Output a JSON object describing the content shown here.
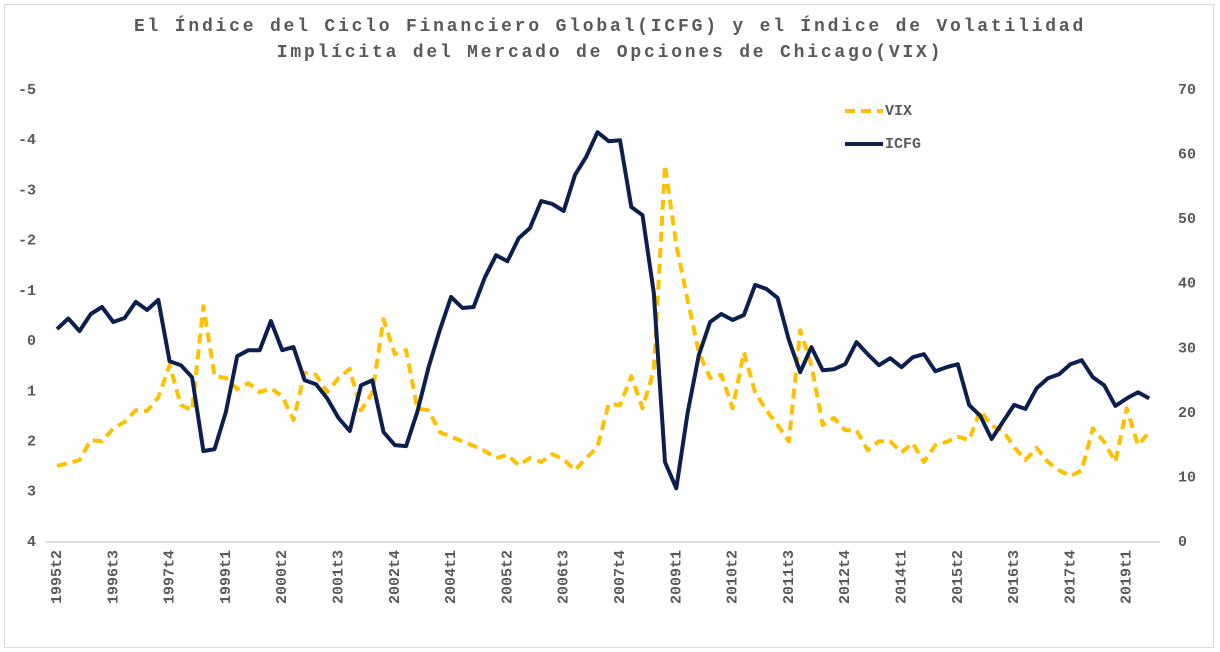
{
  "chart_data": {
    "type": "line",
    "title": "El Índice del Ciclo Financiero Global(ICFG) y el Índice de Volatilidad Implícita del Mercado de Opciones de Chicago(VIX)",
    "categories": [
      "1995t2",
      null,
      null,
      null,
      null,
      "1996t3",
      null,
      null,
      null,
      null,
      "1997t4",
      null,
      null,
      null,
      null,
      "1999t1",
      null,
      null,
      null,
      null,
      "2000t2",
      null,
      null,
      null,
      null,
      "2001t3",
      null,
      null,
      null,
      null,
      "2002t4",
      null,
      null,
      null,
      null,
      "2004t1",
      null,
      null,
      null,
      null,
      "2005t2",
      null,
      null,
      null,
      null,
      "2006t3",
      null,
      null,
      null,
      null,
      "2007t4",
      null,
      null,
      null,
      null,
      "2009t1",
      null,
      null,
      null,
      null,
      "2010t2",
      null,
      null,
      null,
      null,
      "2011t3",
      null,
      null,
      null,
      null,
      "2012t4",
      null,
      null,
      null,
      null,
      "2014t1",
      null,
      null,
      null,
      null,
      "2015t2",
      null,
      null,
      null,
      null,
      "2016t3",
      null,
      null,
      null,
      null,
      "2017t4",
      null,
      null,
      null,
      null,
      "2019t1",
      null,
      null
    ],
    "series": [
      {
        "name": "VIX",
        "color": "#ffc000",
        "dashed": true,
        "axis": "y2",
        "values": [
          11.8,
          12.2,
          12.7,
          15.8,
          15.6,
          17.6,
          18.6,
          20.4,
          20.3,
          22.4,
          27.4,
          21.2,
          20.4,
          36.5,
          25.7,
          25.4,
          23.7,
          24.6,
          23.2,
          23.8,
          22.6,
          18.9,
          26.2,
          25.9,
          23.2,
          25.4,
          26.8,
          20.4,
          23.1,
          34.5,
          29.1,
          29.7,
          20.7,
          20.4,
          17.0,
          16.3,
          15.6,
          14.9,
          14.1,
          13.0,
          13.5,
          11.9,
          13.0,
          12.4,
          13.6,
          12.8,
          11.1,
          13.0,
          14.7,
          21.4,
          21.2,
          25.7,
          20.7,
          26.6,
          58.4,
          46.0,
          37.5,
          29.4,
          25.4,
          25.9,
          20.7,
          29.4,
          23.2,
          20.4,
          18.1,
          15.6,
          32.8,
          27.4,
          18.1,
          19.2,
          17.3,
          17.3,
          14.2,
          15.6,
          15.6,
          13.9,
          15.3,
          12.4,
          15.0,
          15.5,
          16.3,
          15.8,
          20.4,
          18.0,
          17.3,
          14.7,
          12.7,
          14.6,
          12.4,
          11.1,
          10.2,
          11.1,
          17.6,
          15.5,
          12.4,
          20.7,
          15.0,
          17.0
        ]
      },
      {
        "name": "ICFG",
        "color": "#0c1f4f",
        "dashed": false,
        "axis": "y",
        "values": [
          -0.24,
          -0.45,
          -0.2,
          -0.54,
          -0.68,
          -0.38,
          -0.46,
          -0.78,
          -0.62,
          -0.82,
          0.4,
          0.48,
          0.72,
          2.19,
          2.15,
          1.41,
          0.3,
          0.18,
          0.18,
          -0.4,
          0.18,
          0.12,
          0.78,
          0.86,
          1.14,
          1.53,
          1.79,
          0.88,
          0.78,
          1.81,
          2.07,
          2.09,
          1.41,
          0.52,
          -0.22,
          -0.88,
          -0.66,
          -0.68,
          -1.27,
          -1.71,
          -1.59,
          -2.05,
          -2.25,
          -2.79,
          -2.73,
          -2.59,
          -3.31,
          -3.67,
          -4.16,
          -3.98,
          -4.0,
          -2.67,
          -2.51,
          -0.96,
          2.41,
          2.93,
          1.43,
          0.28,
          -0.38,
          -0.54,
          -0.42,
          -0.52,
          -1.12,
          -1.04,
          -0.86,
          -0.02,
          0.62,
          0.12,
          0.58,
          0.56,
          0.46,
          0.02,
          0.26,
          0.48,
          0.34,
          0.52,
          0.32,
          0.26,
          0.6,
          0.52,
          0.46,
          1.27,
          1.49,
          1.95,
          1.61,
          1.27,
          1.35,
          0.94,
          0.74,
          0.66,
          0.46,
          0.38,
          0.72,
          0.88,
          1.29,
          1.14,
          1.02,
          1.14
        ]
      }
    ],
    "ylim": [
      4,
      -5
    ],
    "yticks": [
      -5,
      -4,
      -3,
      -2,
      -1,
      0,
      1,
      2,
      3,
      4
    ],
    "y2lim": [
      0,
      70
    ],
    "y2ticks": [
      0,
      10,
      20,
      30,
      40,
      50,
      60,
      70
    ],
    "grid": false,
    "legend": "upper right"
  }
}
